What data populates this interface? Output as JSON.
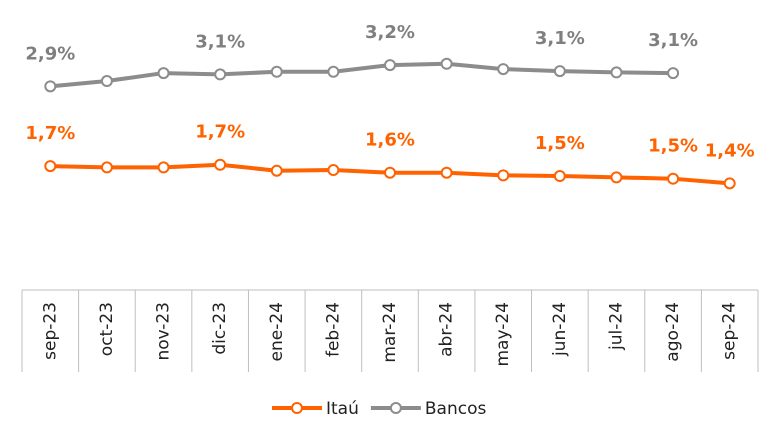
{
  "chart_data": {
    "type": "line",
    "categories": [
      "sep-23",
      "oct-23",
      "nov-23",
      "dic-23",
      "ene-24",
      "feb-24",
      "mar-24",
      "abr-24",
      "may-24",
      "jun-24",
      "jul-24",
      "ago-24",
      "sep-24"
    ],
    "series": [
      {
        "name": "Itaú",
        "color": "#ff6200",
        "values": [
          1.7,
          1.68,
          1.68,
          1.72,
          1.63,
          1.64,
          1.6,
          1.6,
          1.56,
          1.55,
          1.53,
          1.51,
          1.44
        ],
        "value_labels": [
          "1,7%",
          null,
          null,
          "1,7%",
          null,
          null,
          "1,6%",
          null,
          null,
          "1,5%",
          null,
          "1,5%",
          "1,4%"
        ]
      },
      {
        "name": "Bancos",
        "color": "#8c8c8c",
        "values": [
          2.9,
          2.98,
          3.1,
          3.08,
          3.12,
          3.12,
          3.22,
          3.24,
          3.16,
          3.13,
          3.11,
          3.1,
          null
        ],
        "value_labels": [
          "2,9%",
          null,
          null,
          "3,1%",
          null,
          null,
          "3,2%",
          null,
          null,
          "3,1%",
          null,
          "3,1%",
          null
        ]
      }
    ],
    "ylim": [
      0,
      4.2
    ]
  }
}
